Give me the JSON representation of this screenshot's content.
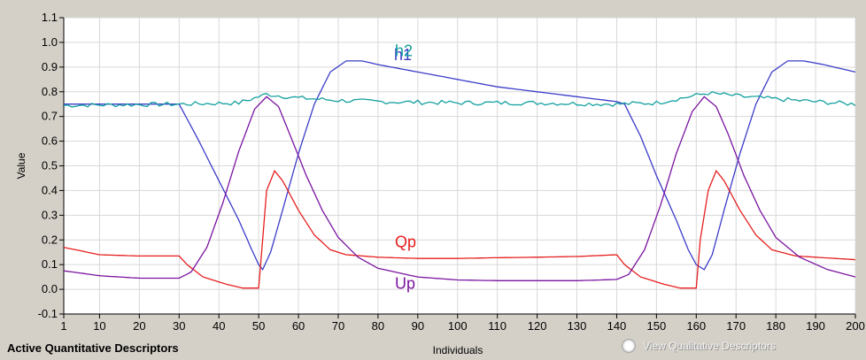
{
  "chart_data": {
    "type": "line",
    "xlabel": "Individuals",
    "ylabel": "Value",
    "xlim": [
      1,
      200
    ],
    "ylim": [
      -0.1,
      1.1
    ],
    "x_ticks": [
      "1",
      "10",
      "20",
      "30",
      "40",
      "50",
      "60",
      "70",
      "80",
      "90",
      "100",
      "110",
      "120",
      "130",
      "140",
      "150",
      "160",
      "170",
      "180",
      "190",
      "200"
    ],
    "y_ticks": [
      "1.1",
      "1.0",
      "0.9",
      "0.8",
      "0.7",
      "0.6",
      "0.5",
      "0.4",
      "0.3",
      "0.2",
      "0.1",
      "0.0",
      "-0.1"
    ],
    "grid": true,
    "series": [
      {
        "name": "h1",
        "color": "#3c3cc8",
        "points": [
          [
            1,
            0.75
          ],
          [
            30,
            0.75
          ],
          [
            35,
            0.6
          ],
          [
            40,
            0.44
          ],
          [
            45,
            0.28
          ],
          [
            48,
            0.17
          ],
          [
            50,
            0.1
          ],
          [
            51,
            0.08
          ],
          [
            53,
            0.15
          ],
          [
            56,
            0.32
          ],
          [
            60,
            0.55
          ],
          [
            64,
            0.75
          ],
          [
            68,
            0.88
          ],
          [
            72,
            0.925
          ],
          [
            76,
            0.925
          ],
          [
            80,
            0.91
          ],
          [
            90,
            0.88
          ],
          [
            100,
            0.85
          ],
          [
            110,
            0.82
          ],
          [
            120,
            0.8
          ],
          [
            130,
            0.78
          ],
          [
            140,
            0.76
          ],
          [
            142,
            0.75
          ],
          [
            146,
            0.62
          ],
          [
            150,
            0.46
          ],
          [
            155,
            0.28
          ],
          [
            158,
            0.16
          ],
          [
            160,
            0.1
          ],
          [
            162,
            0.08
          ],
          [
            164,
            0.14
          ],
          [
            167,
            0.32
          ],
          [
            171,
            0.55
          ],
          [
            175,
            0.75
          ],
          [
            179,
            0.88
          ],
          [
            183,
            0.925
          ],
          [
            187,
            0.925
          ],
          [
            192,
            0.91
          ],
          [
            200,
            0.88
          ]
        ]
      },
      {
        "name": "h2",
        "color": "#14a0a0",
        "noise": true,
        "points": [
          [
            1,
            0.745
          ],
          [
            30,
            0.75
          ],
          [
            45,
            0.755
          ],
          [
            52,
            0.79
          ],
          [
            60,
            0.775
          ],
          [
            70,
            0.765
          ],
          [
            80,
            0.76
          ],
          [
            100,
            0.755
          ],
          [
            120,
            0.755
          ],
          [
            140,
            0.75
          ],
          [
            150,
            0.755
          ],
          [
            163,
            0.795
          ],
          [
            172,
            0.78
          ],
          [
            185,
            0.765
          ],
          [
            200,
            0.75
          ]
        ]
      },
      {
        "name": "Qp",
        "color": "#e61e1e",
        "points": [
          [
            1,
            0.17
          ],
          [
            10,
            0.14
          ],
          [
            20,
            0.135
          ],
          [
            30,
            0.135
          ],
          [
            32,
            0.1
          ],
          [
            36,
            0.05
          ],
          [
            42,
            0.02
          ],
          [
            46,
            0.005
          ],
          [
            50,
            0.005
          ],
          [
            51,
            0.2
          ],
          [
            52,
            0.4
          ],
          [
            54,
            0.48
          ],
          [
            56,
            0.44
          ],
          [
            60,
            0.32
          ],
          [
            64,
            0.22
          ],
          [
            68,
            0.16
          ],
          [
            72,
            0.14
          ],
          [
            80,
            0.13
          ],
          [
            90,
            0.125
          ],
          [
            100,
            0.125
          ],
          [
            110,
            0.128
          ],
          [
            120,
            0.13
          ],
          [
            130,
            0.133
          ],
          [
            140,
            0.14
          ],
          [
            142,
            0.1
          ],
          [
            146,
            0.05
          ],
          [
            152,
            0.02
          ],
          [
            156,
            0.005
          ],
          [
            160,
            0.005
          ],
          [
            161,
            0.2
          ],
          [
            163,
            0.4
          ],
          [
            165,
            0.48
          ],
          [
            167,
            0.44
          ],
          [
            171,
            0.32
          ],
          [
            175,
            0.22
          ],
          [
            179,
            0.16
          ],
          [
            185,
            0.135
          ],
          [
            200,
            0.12
          ]
        ]
      },
      {
        "name": "Up",
        "color": "#7a14a0",
        "points": [
          [
            1,
            0.075
          ],
          [
            10,
            0.055
          ],
          [
            20,
            0.045
          ],
          [
            30,
            0.045
          ],
          [
            33,
            0.07
          ],
          [
            37,
            0.17
          ],
          [
            41,
            0.35
          ],
          [
            45,
            0.56
          ],
          [
            49,
            0.73
          ],
          [
            52,
            0.78
          ],
          [
            55,
            0.74
          ],
          [
            58,
            0.62
          ],
          [
            62,
            0.46
          ],
          [
            66,
            0.32
          ],
          [
            70,
            0.21
          ],
          [
            75,
            0.13
          ],
          [
            80,
            0.085
          ],
          [
            90,
            0.05
          ],
          [
            100,
            0.038
          ],
          [
            110,
            0.035
          ],
          [
            120,
            0.035
          ],
          [
            130,
            0.035
          ],
          [
            140,
            0.04
          ],
          [
            143,
            0.06
          ],
          [
            147,
            0.16
          ],
          [
            151,
            0.34
          ],
          [
            155,
            0.55
          ],
          [
            159,
            0.72
          ],
          [
            162,
            0.78
          ],
          [
            165,
            0.74
          ],
          [
            168,
            0.63
          ],
          [
            172,
            0.46
          ],
          [
            176,
            0.32
          ],
          [
            180,
            0.21
          ],
          [
            186,
            0.13
          ],
          [
            193,
            0.08
          ],
          [
            200,
            0.05
          ]
        ]
      }
    ]
  },
  "footer": {
    "active_label": "Active Quantitative Descriptors",
    "view_label": "View Qualitative Descriptors"
  }
}
